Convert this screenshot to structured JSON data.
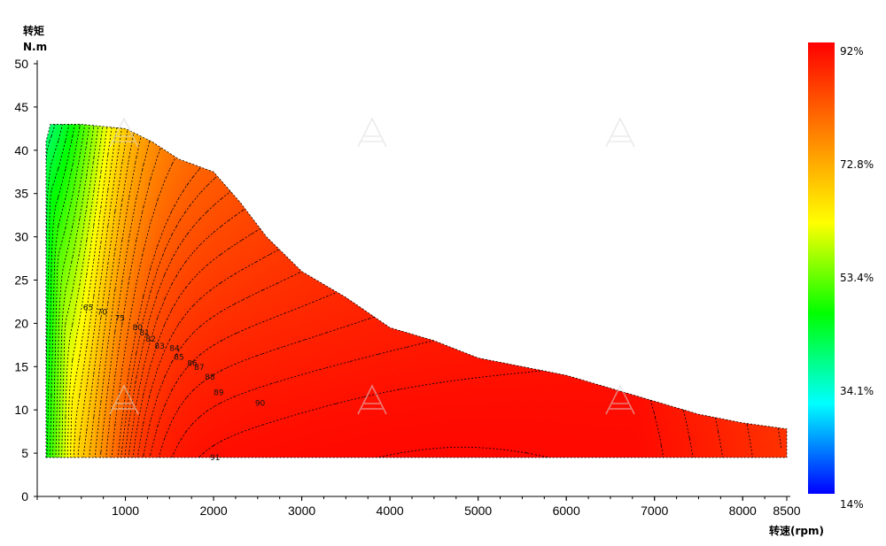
{
  "chart_data": {
    "type": "heatmap",
    "subtype": "efficiency contour map",
    "ylabel": "转矩",
    "yunit": "N.m",
    "xlabel": "转速(rpm)",
    "xlim": [
      0,
      8500
    ],
    "ylim": [
      0,
      50
    ],
    "xticks": [
      1000,
      2000,
      3000,
      4000,
      5000,
      6000,
      7000,
      8000,
      8500
    ],
    "yticks": [
      0,
      5,
      10,
      15,
      20,
      25,
      30,
      35,
      40,
      45,
      50
    ],
    "grid": false,
    "colorbar": {
      "min_label": "14%",
      "max_label": "92%",
      "labels": [
        "92%",
        "72.8%",
        "53.4%",
        "34.1%",
        "14%"
      ],
      "range": [
        14,
        92
      ],
      "colors": [
        "#0000ff",
        "#00ffff",
        "#00ff00",
        "#ffff00",
        "#ff8000",
        "#ff0000"
      ]
    },
    "boundary_max_torque": [
      [
        100,
        41
      ],
      [
        150,
        43
      ],
      [
        500,
        43
      ],
      [
        1000,
        42.5
      ],
      [
        1300,
        41
      ],
      [
        1600,
        39
      ],
      [
        2000,
        37.5
      ],
      [
        2300,
        34
      ],
      [
        2600,
        30
      ],
      [
        3000,
        26
      ],
      [
        3500,
        23
      ],
      [
        4000,
        19.5
      ],
      [
        4500,
        18
      ],
      [
        5000,
        16
      ],
      [
        5500,
        15
      ],
      [
        6000,
        14
      ],
      [
        6500,
        12.5
      ],
      [
        7000,
        11
      ],
      [
        7500,
        9.5
      ],
      [
        8000,
        8.5
      ],
      [
        8500,
        7.8
      ]
    ],
    "min_torque": 4.5,
    "contour_labels": [
      {
        "value": 65,
        "x": 520,
        "y": 21.5
      },
      {
        "value": 70,
        "x": 680,
        "y": 21
      },
      {
        "value": 75,
        "x": 880,
        "y": 20.3
      },
      {
        "value": 80,
        "x": 1080,
        "y": 19.2
      },
      {
        "value": 81,
        "x": 1160,
        "y": 18.6
      },
      {
        "value": 82,
        "x": 1230,
        "y": 17.9
      },
      {
        "value": 83,
        "x": 1330,
        "y": 17.1
      },
      {
        "value": 84,
        "x": 1500,
        "y": 16.8
      },
      {
        "value": 85,
        "x": 1550,
        "y": 15.8
      },
      {
        "value": 86,
        "x": 1700,
        "y": 15.1
      },
      {
        "value": 87,
        "x": 1780,
        "y": 14.6
      },
      {
        "value": 88,
        "x": 1900,
        "y": 13.5
      },
      {
        "value": 89,
        "x": 2000,
        "y": 11.7
      },
      {
        "value": 90,
        "x": 2470,
        "y": 10.5
      },
      {
        "value": 91,
        "x": 1960,
        "y": 4.2
      }
    ]
  }
}
